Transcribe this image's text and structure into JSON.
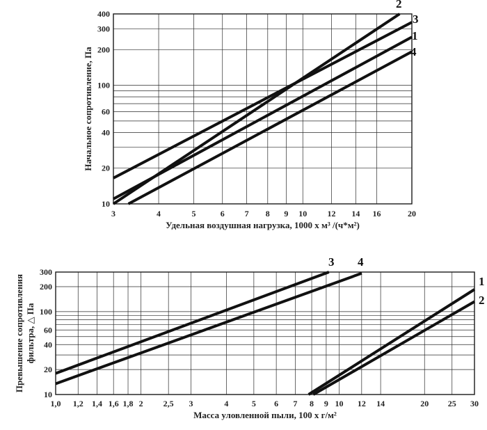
{
  "chart_data": [
    {
      "type": "line",
      "title": "",
      "xlabel": "Удельная воздушная нагрузка, 1000 х  м³ /(ч*м²)",
      "ylabel": "Начальное сопротивление, Па",
      "x_scale": "log",
      "y_scale": "log",
      "xlim": [
        3,
        20
      ],
      "ylim": [
        10,
        400
      ],
      "x_ticks": [
        3,
        4,
        5,
        6,
        7,
        8,
        9,
        10,
        12,
        14,
        16,
        20
      ],
      "x_tick_labels": [
        "3",
        "4",
        "5",
        "6",
        "7",
        "8",
        "9",
        "10",
        "12",
        "14",
        "16",
        "20"
      ],
      "y_ticks": [
        10,
        20,
        40,
        60,
        100,
        200,
        300,
        400
      ],
      "y_tick_labels": [
        "10",
        "20",
        "40",
        "60",
        "100",
        "200",
        "300",
        "400"
      ],
      "y_grid": [
        10,
        20,
        30,
        40,
        50,
        60,
        70,
        80,
        90,
        100,
        200,
        300,
        400
      ],
      "grid": true,
      "series": [
        {
          "name": "1",
          "x": [
            3,
            20
          ],
          "y": [
            11,
            255
          ]
        },
        {
          "name": "2",
          "x": [
            3,
            18.5
          ],
          "y": [
            10,
            400
          ]
        },
        {
          "name": "3",
          "x": [
            3,
            20
          ],
          "y": [
            16.5,
            340
          ]
        },
        {
          "name": "4",
          "x": [
            3.3,
            20
          ],
          "y": [
            10,
            192
          ]
        }
      ]
    },
    {
      "type": "line",
      "title": "",
      "xlabel": "Масса уловленной пыли, 100 х г/м²",
      "ylabel": "Превышение сопротивления фильтра, △ Па",
      "x_scale": "log",
      "y_scale": "log",
      "xlim": [
        1,
        30
      ],
      "ylim": [
        10,
        300
      ],
      "x_ticks": [
        1,
        1.2,
        1.4,
        1.6,
        1.8,
        2,
        2.5,
        3,
        4,
        5,
        6,
        7,
        8,
        9,
        10,
        12,
        14,
        20,
        25,
        30
      ],
      "x_tick_labels": [
        "1,0",
        "1,2",
        "1,4",
        "1,6",
        "1,8",
        "2",
        "2,5",
        "3",
        "4",
        "5",
        "6",
        "7",
        "8",
        "9",
        "10",
        "12",
        "14",
        "20",
        "25",
        "30"
      ],
      "y_ticks": [
        10,
        20,
        40,
        60,
        100,
        200,
        300
      ],
      "y_tick_labels": [
        "10",
        "20",
        "40",
        "60",
        "100",
        "200",
        "300"
      ],
      "y_grid": [
        10,
        20,
        30,
        40,
        50,
        60,
        70,
        80,
        90,
        100,
        200,
        300
      ],
      "grid": true,
      "series": [
        {
          "name": "1",
          "x": [
            7.8,
            30
          ],
          "y": [
            10,
            185
          ]
        },
        {
          "name": "2",
          "x": [
            8.1,
            30
          ],
          "y": [
            10,
            132
          ]
        },
        {
          "name": "3",
          "x": [
            1,
            9.2
          ],
          "y": [
            18,
            300
          ]
        },
        {
          "name": "4",
          "x": [
            1,
            12
          ],
          "y": [
            13.5,
            290
          ]
        }
      ]
    }
  ]
}
